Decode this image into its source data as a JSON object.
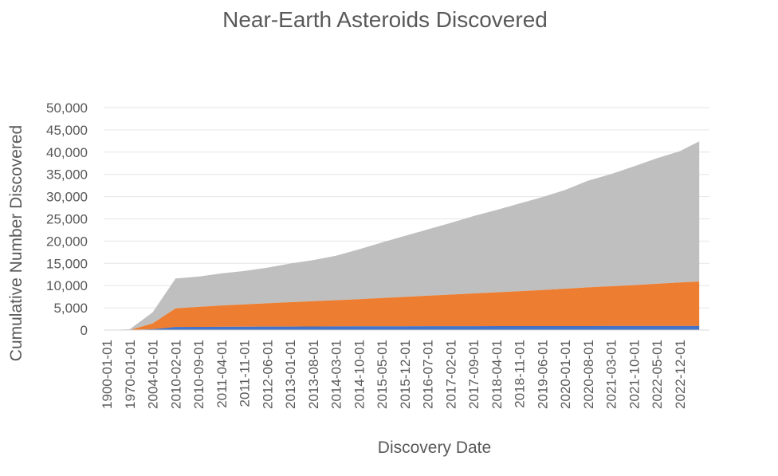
{
  "chart_data": {
    "type": "area",
    "stacked": true,
    "title": "Near-Earth Asteroids Discovered",
    "xlabel": "Discovery Date",
    "ylabel": "Cumulative Number Discovered",
    "ylim": [
      0,
      50000
    ],
    "yticks": [
      0,
      5000,
      10000,
      15000,
      20000,
      25000,
      30000,
      35000,
      40000,
      45000,
      50000
    ],
    "ytick_labels": [
      "0",
      "5,000",
      "10,000",
      "15,000",
      "20,000",
      "25,000",
      "30,000",
      "35,000",
      "40,000",
      "45,000",
      "50,000"
    ],
    "grid": true,
    "legend": "none",
    "x": [
      "1900-01-01",
      "1970-01-01",
      "2004-01-01",
      "2010-02-01",
      "2010-09-01",
      "2011-04-01",
      "2011-11-01",
      "2012-06-01",
      "2013-01-01",
      "2013-08-01",
      "2014-03-01",
      "2014-10-01",
      "2015-05-01",
      "2015-12-01",
      "2016-07-01",
      "2017-02-01",
      "2017-09-01",
      "2018-04-01",
      "2018-11-01",
      "2019-06-01",
      "2020-01-01",
      "2020-08-01",
      "2021-03-01",
      "2021-10-01",
      "2022-05-01",
      "2022-12-01"
    ],
    "x_start": "1900-01-01",
    "x_end": "2023-06-01",
    "series": [
      {
        "color": "#4472c4",
        "x": [
          "1900-01-01",
          "1970-01-01",
          "2004-01-01",
          "2010-02-01",
          "2012-06-01",
          "2014-10-01",
          "2017-02-01",
          "2019-06-01",
          "2021-10-01",
          "2023-06-01"
        ],
        "values": [
          0,
          10,
          200,
          700,
          780,
          840,
          880,
          900,
          910,
          920
        ]
      },
      {
        "color": "#ed7d31",
        "x": [
          "1900-01-01",
          "1970-01-01",
          "2004-01-01",
          "2010-02-01",
          "2011-04-01",
          "2012-06-01",
          "2013-08-01",
          "2014-10-01",
          "2015-12-01",
          "2017-02-01",
          "2018-04-01",
          "2019-06-01",
          "2020-08-01",
          "2021-10-01",
          "2022-12-01",
          "2023-06-01"
        ],
        "values": [
          0,
          10,
          1300,
          4200,
          4800,
          5250,
          5700,
          6100,
          6600,
          7100,
          7600,
          8100,
          8700,
          9200,
          9800,
          10000
        ]
      },
      {
        "color": "#bfbfbf",
        "x": [
          "1900-01-01",
          "1970-01-01",
          "2004-01-01",
          "2010-02-01",
          "2010-09-01",
          "2011-04-01",
          "2011-11-01",
          "2012-06-01",
          "2013-01-01",
          "2013-08-01",
          "2014-03-01",
          "2014-10-01",
          "2015-05-01",
          "2015-12-01",
          "2016-07-01",
          "2017-02-01",
          "2017-09-01",
          "2018-04-01",
          "2018-11-01",
          "2019-06-01",
          "2020-01-01",
          "2020-08-01",
          "2021-03-01",
          "2021-10-01",
          "2022-05-01",
          "2022-12-01",
          "2023-06-01"
        ],
        "values": [
          0,
          180,
          2500,
          6700,
          6800,
          7200,
          7500,
          8000,
          8700,
          9200,
          10000,
          11200,
          12500,
          13700,
          14900,
          16100,
          17400,
          18500,
          19700,
          20900,
          22200,
          24000,
          25200,
          26700,
          28200,
          29500,
          31500
        ]
      }
    ]
  }
}
